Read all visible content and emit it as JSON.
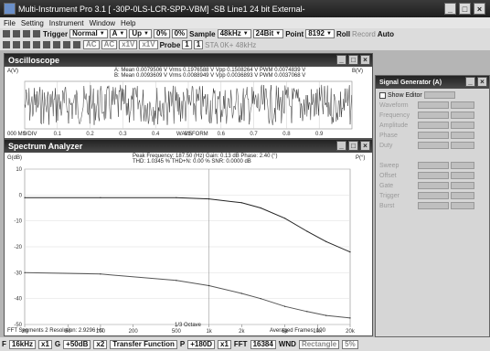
{
  "window": {
    "title": "Multi-Instrument Pro 3.1  [ -30P-0LS-LCR-SPP-VBM]   -SB Line1 24 bit External-",
    "min": "_",
    "max": "□",
    "close": "×"
  },
  "menu": [
    "File",
    "Setting",
    "Instrument",
    "Window",
    "Help"
  ],
  "toolbar1": {
    "trigger_label": "Trigger",
    "trigger_mode": "Normal",
    "channel": "A",
    "edge": "Up",
    "level1": "0%",
    "level2": "0%",
    "sample_label": "Sample",
    "sample_rate": "48kHz",
    "bits": "24Bit",
    "point_label": "Point",
    "points": "8192",
    "roll": "Roll",
    "record": "Record",
    "auto": "Auto"
  },
  "toolbar2": {
    "ch_a": "AC",
    "ch_b": "AC",
    "dim1": "x1V",
    "dim2": "x1V",
    "probe_label": "Probe",
    "probe_a": "1",
    "probe_b": "1",
    "status": "STA 0K+ 48kHz"
  },
  "oscilloscope": {
    "title": "Oscilloscope",
    "info1": "A: Mean 0.0079506 V   Vrms 0.1976588 V   Vpp 0.1508264 V   PWM 0.0074839 V",
    "info2": "B: Mean 0.0093609 V   Vrms 0.0088949 V   Vpp 0.0036893 V   PWM 0.0037068 V",
    "left_label": "A(V)",
    "right_label": "B(V)",
    "xlabel": "WAVEFORM",
    "xcorner": "000 MS/DIV",
    "ticks": [
      "0",
      "0.1",
      "0.2",
      "0.3",
      "0.4",
      "0.5",
      "0.6",
      "0.7",
      "0.8",
      "0.9"
    ]
  },
  "spectrum": {
    "title": "Spectrum Analyzer",
    "peak": "Peak Frequency: 187.50 (Hz)   Gain: 0.13 dB   Phase: 2.40 (°)",
    "thd": "THD: 1.0345 %   THD+N: 0.00 %   SNR: 0.0000 dB",
    "left_label": "G(dB)",
    "right_label": "P(°)",
    "xlabel": "1/3 Octave",
    "x_ticks": [
      "20",
      "50",
      "100",
      "200",
      "500",
      "1k",
      "2k",
      "5k",
      "10k",
      "20k"
    ],
    "footer_left": "FFT Segments 2   Resolution: 2.9296 Hz",
    "footer_right": "Averaged Frames: 100"
  },
  "chart_data": {
    "type": "line",
    "title": "Spectrum Analyzer",
    "xlabel": "1/3 Octave",
    "ylabel": "G(dB)",
    "x_scale": "log",
    "xlim": [
      20,
      20000
    ],
    "ylim": [
      -50,
      10
    ],
    "series": [
      {
        "name": "Gain",
        "x": [
          20,
          100,
          500,
          1000,
          2000,
          3000,
          5000,
          8000,
          12000,
          20000
        ],
        "y": [
          -1,
          -1,
          -1,
          -1.5,
          -3,
          -5,
          -9,
          -14,
          -18,
          -22
        ]
      },
      {
        "name": "Phase",
        "x": [
          20,
          100,
          500,
          1000,
          2000,
          3000,
          5000,
          8000,
          12000,
          20000
        ],
        "y": [
          -30,
          -30.5,
          -33,
          -35,
          -38,
          -40,
          -43,
          -45,
          -46.5,
          -47.5
        ]
      }
    ]
  },
  "signal_generator": {
    "title": "Signal Generator (A)",
    "show_editor": "Show Editor",
    "items": [
      "Waveform",
      "Frequency",
      "Amplitude",
      "Phase",
      "Duty",
      "Sweep",
      "Offset",
      "Gate",
      "Trigger",
      "Burst"
    ]
  },
  "statusbar": {
    "f_label": "F",
    "f_val": "16kHz",
    "m1": "x1",
    "g_label": "G",
    "g_val": "+50dB",
    "m2": "x2",
    "func": "Transfer Function",
    "p_label": "P",
    "p_val": "+180D",
    "m3": "x1",
    "fft_label": "FFT",
    "fft_val": "16384",
    "wnd": "WND",
    "wnd_val": "Rectangle",
    "end": "5%"
  }
}
